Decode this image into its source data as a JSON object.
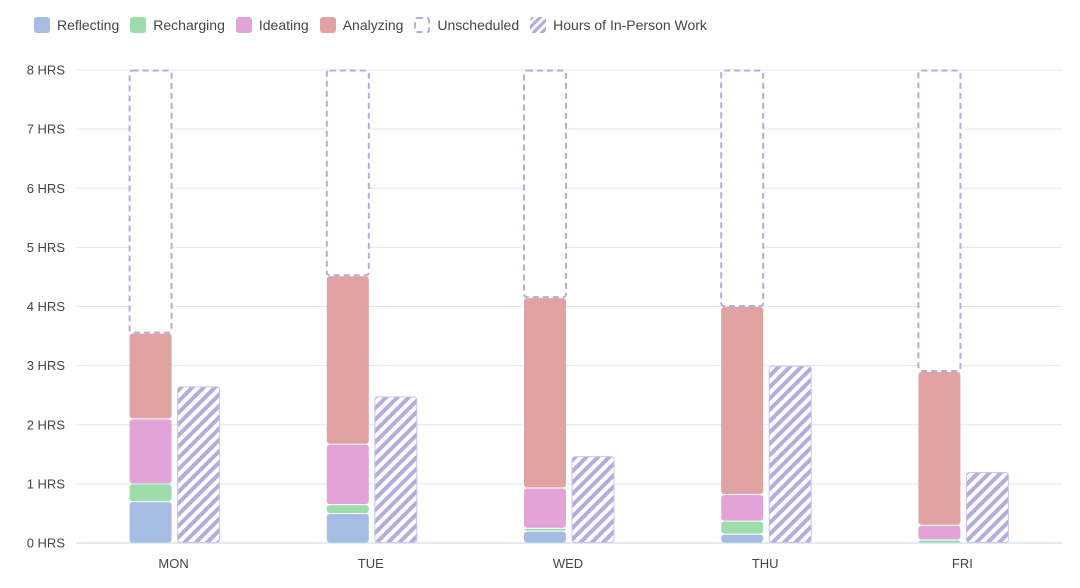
{
  "chart_data": {
    "type": "bar",
    "stacked": true,
    "categories": [
      "MON",
      "TUE",
      "WED",
      "THU",
      "FRI"
    ],
    "y_ticks": [
      "0 HRS",
      "1 HRS",
      "2 HRS",
      "3 HRS",
      "4 HRS",
      "5 HRS",
      "6 HRS",
      "7 HRS",
      "8 HRS"
    ],
    "ylim": [
      0,
      8
    ],
    "grid": true,
    "legend_position": "top-left",
    "series": [
      {
        "name": "Reflecting",
        "stack": "schedule",
        "style": "solid",
        "color": "#a7bce3",
        "values": [
          0.7,
          0.5,
          0.2,
          0.15,
          0.0
        ]
      },
      {
        "name": "Recharging",
        "stack": "schedule",
        "style": "solid",
        "color": "#9fdcac",
        "values": [
          0.3,
          0.15,
          0.05,
          0.22,
          0.05
        ]
      },
      {
        "name": "Ideating",
        "stack": "schedule",
        "style": "solid",
        "color": "#e2a3d7",
        "values": [
          1.1,
          1.02,
          0.68,
          0.45,
          0.25
        ]
      },
      {
        "name": "Analyzing",
        "stack": "schedule",
        "style": "solid",
        "color": "#e0a2a2",
        "values": [
          1.45,
          2.85,
          3.22,
          3.18,
          2.6
        ]
      },
      {
        "name": "Unscheduled",
        "stack": "schedule",
        "style": "dashed",
        "color": "#b3addf",
        "values": [
          4.45,
          3.48,
          3.85,
          4.0,
          5.1
        ]
      },
      {
        "name": "Hours of In-Person Work",
        "stack": "inperson",
        "style": "hatched",
        "color": "#b3addf",
        "values": [
          2.65,
          2.48,
          1.47,
          3.0,
          1.2
        ]
      }
    ]
  }
}
